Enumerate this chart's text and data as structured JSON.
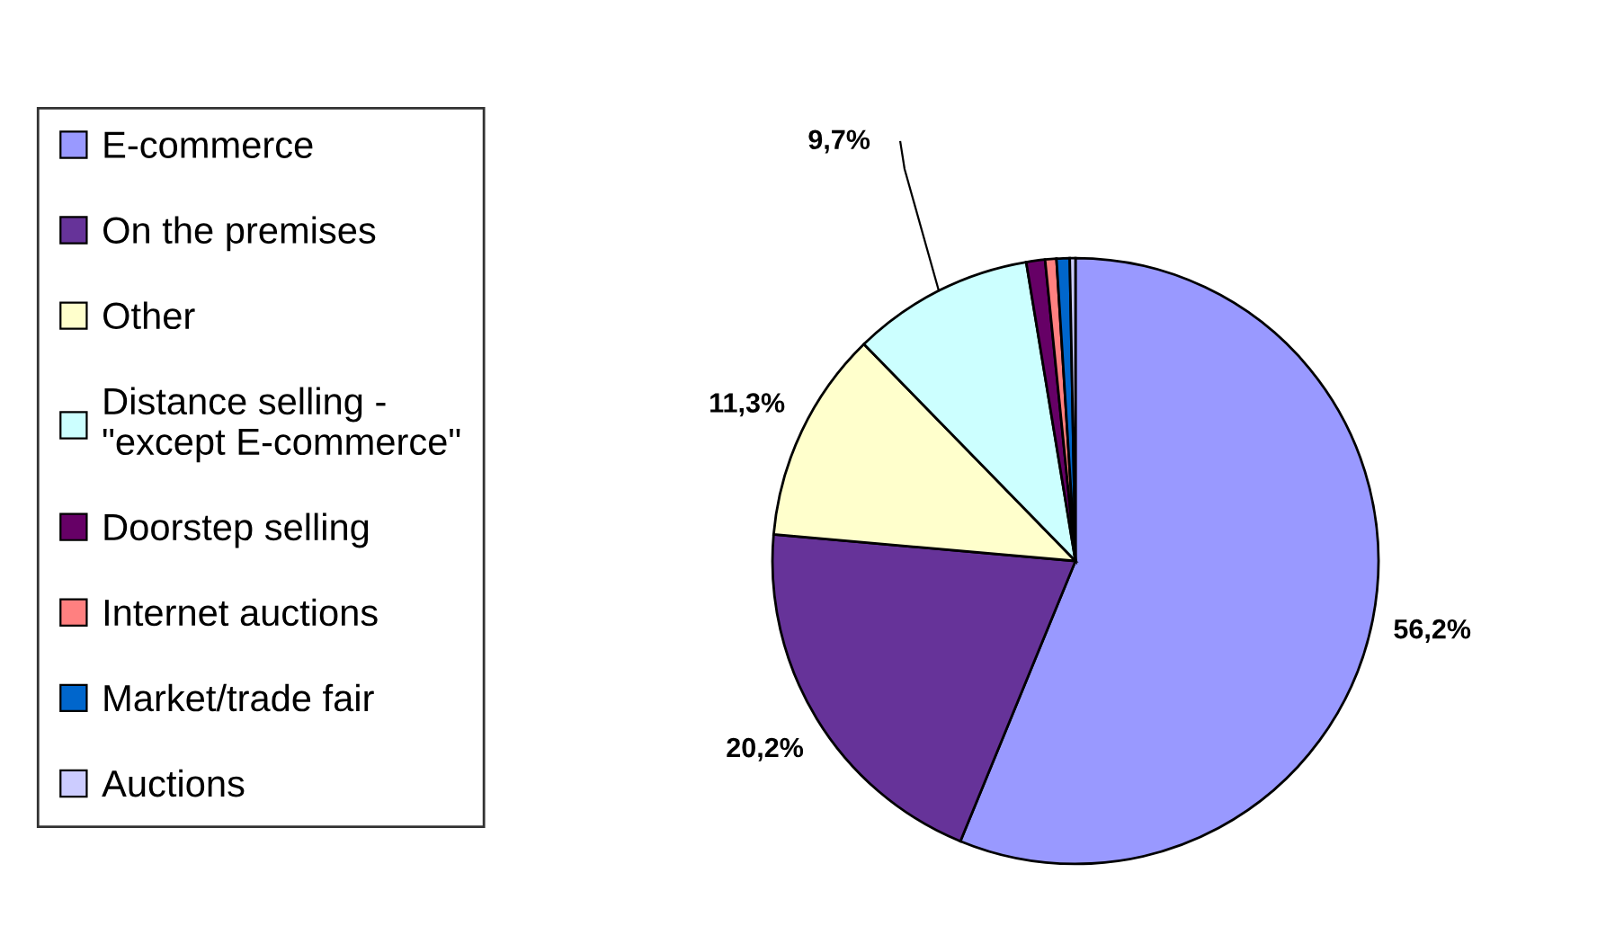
{
  "chart_data": {
    "type": "pie",
    "categories": [
      "E-commerce",
      "On the premises",
      "Other",
      "Distance selling -\n\"except E-commerce\"",
      "Doorstep selling",
      "Internet auctions",
      "Market/trade fair",
      "Auctions"
    ],
    "values": [
      56.2,
      20.2,
      11.3,
      9.7,
      1.0,
      0.6,
      0.7,
      0.3
    ],
    "value_labels": [
      "56,2%",
      "20,2%",
      "11,3%",
      "9,7%",
      null,
      null,
      null,
      null
    ],
    "colors": [
      "#9999ff",
      "#663399",
      "#ffffcc",
      "#ccffff",
      "#660066",
      "#ff8080",
      "#0066cc",
      "#ccccff"
    ],
    "legend": "left"
  }
}
